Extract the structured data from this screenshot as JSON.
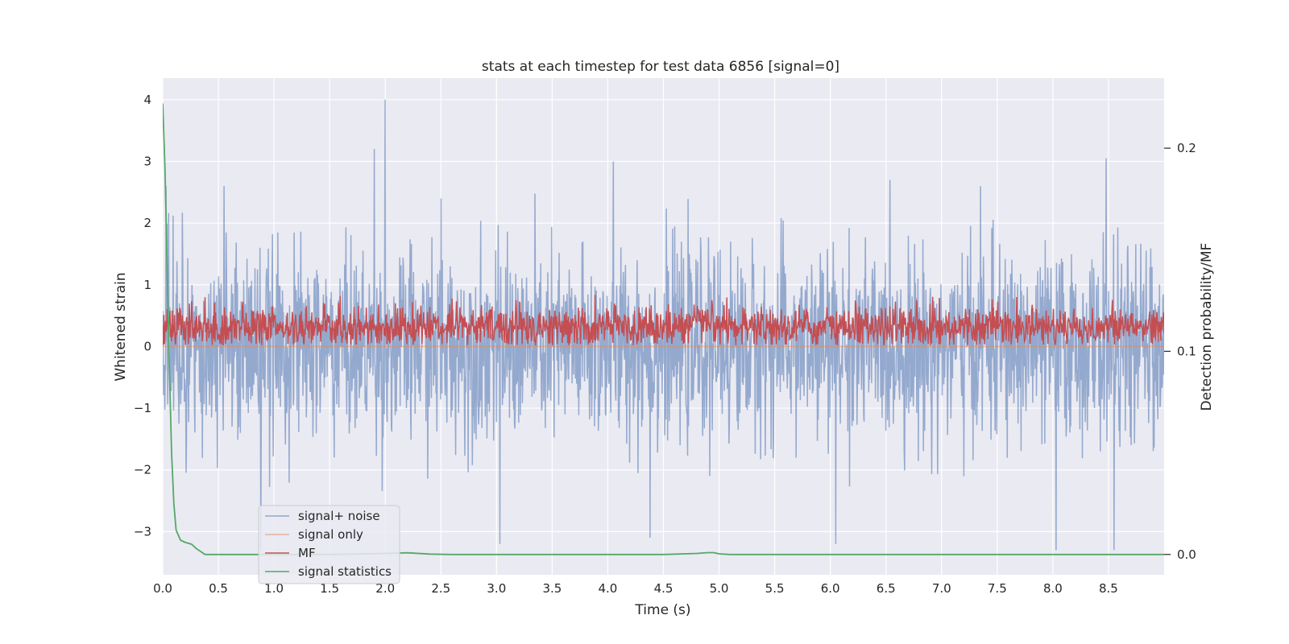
{
  "chart_data": {
    "type": "line",
    "title": "stats at each timestep for test data 6856 [signal=0]",
    "xlabel": "Time (s)",
    "ylabel": "Whitened strain",
    "y2label": "Detection probability/MF",
    "xlim": [
      0.0,
      9.0
    ],
    "ylim": [
      -3.7,
      4.35
    ],
    "y2lim": [
      -0.01,
      0.2345
    ],
    "x_ticks": [
      "0.0",
      "0.5",
      "1.0",
      "1.5",
      "2.0",
      "2.5",
      "3.0",
      "3.5",
      "4.0",
      "4.5",
      "5.0",
      "5.5",
      "6.0",
      "6.5",
      "7.0",
      "7.5",
      "8.0",
      "8.5"
    ],
    "y_ticks": [
      "−3",
      "−2",
      "−1",
      "0",
      "1",
      "2",
      "3",
      "4"
    ],
    "y2_ticks": [
      "0.0",
      "0.1",
      "0.2"
    ],
    "grid": true,
    "background": "#eaeaf2",
    "legend_position": "lower-left",
    "legend": [
      "signal+ noise",
      "signal only",
      "MF",
      "signal statistics"
    ],
    "series": [
      {
        "name": "signal+ noise",
        "axis": "left",
        "color": "#4c72b0",
        "description": "dense whitened strain noise, roughly symmetric around 0, range approx -3.3 to 4.0",
        "peaks": [
          [
            0.03,
            2.6
          ],
          [
            0.55,
            2.6
          ],
          [
            0.88,
            -3.3
          ],
          [
            1.9,
            3.2
          ],
          [
            2.0,
            4.0
          ],
          [
            2.5,
            2.4
          ],
          [
            3.03,
            -3.2
          ],
          [
            4.05,
            3.0
          ],
          [
            4.38,
            -3.1
          ],
          [
            6.05,
            -3.2
          ],
          [
            7.35,
            2.6
          ],
          [
            8.03,
            -3.3
          ],
          [
            8.48,
            3.05
          ],
          [
            8.55,
            -3.3
          ]
        ]
      },
      {
        "name": "signal only",
        "axis": "left",
        "color": "#dd8452",
        "values": "flat at 0"
      },
      {
        "name": "MF",
        "axis": "left",
        "color": "#c44e52",
        "description": "matched filter output, band between about 0.0 and 0.95"
      },
      {
        "name": "signal statistics",
        "axis": "right",
        "color": "#55a868",
        "x": [
          0.0,
          0.02,
          0.04,
          0.06,
          0.08,
          0.1,
          0.12,
          0.16,
          0.2,
          0.26,
          0.3,
          0.38,
          0.5,
          1.0,
          1.5,
          2.0,
          2.2,
          2.4,
          2.6,
          3.0,
          3.5,
          4.0,
          4.5,
          4.8,
          4.9,
          4.95,
          5.0,
          5.1,
          5.5,
          6.0,
          7.0,
          8.0,
          9.0
        ],
        "y": [
          0.222,
          0.19,
          0.14,
          0.09,
          0.05,
          0.025,
          0.012,
          0.007,
          0.006,
          0.005,
          0.003,
          0.0,
          0.0,
          0.0,
          0.0,
          0.0005,
          0.0008,
          0.0002,
          0.0,
          0.0,
          0.0,
          0.0,
          0.0,
          0.0005,
          0.0009,
          0.0009,
          0.0003,
          0.0,
          0.0,
          0.0,
          0.0,
          0.0,
          0.0
        ]
      }
    ]
  }
}
